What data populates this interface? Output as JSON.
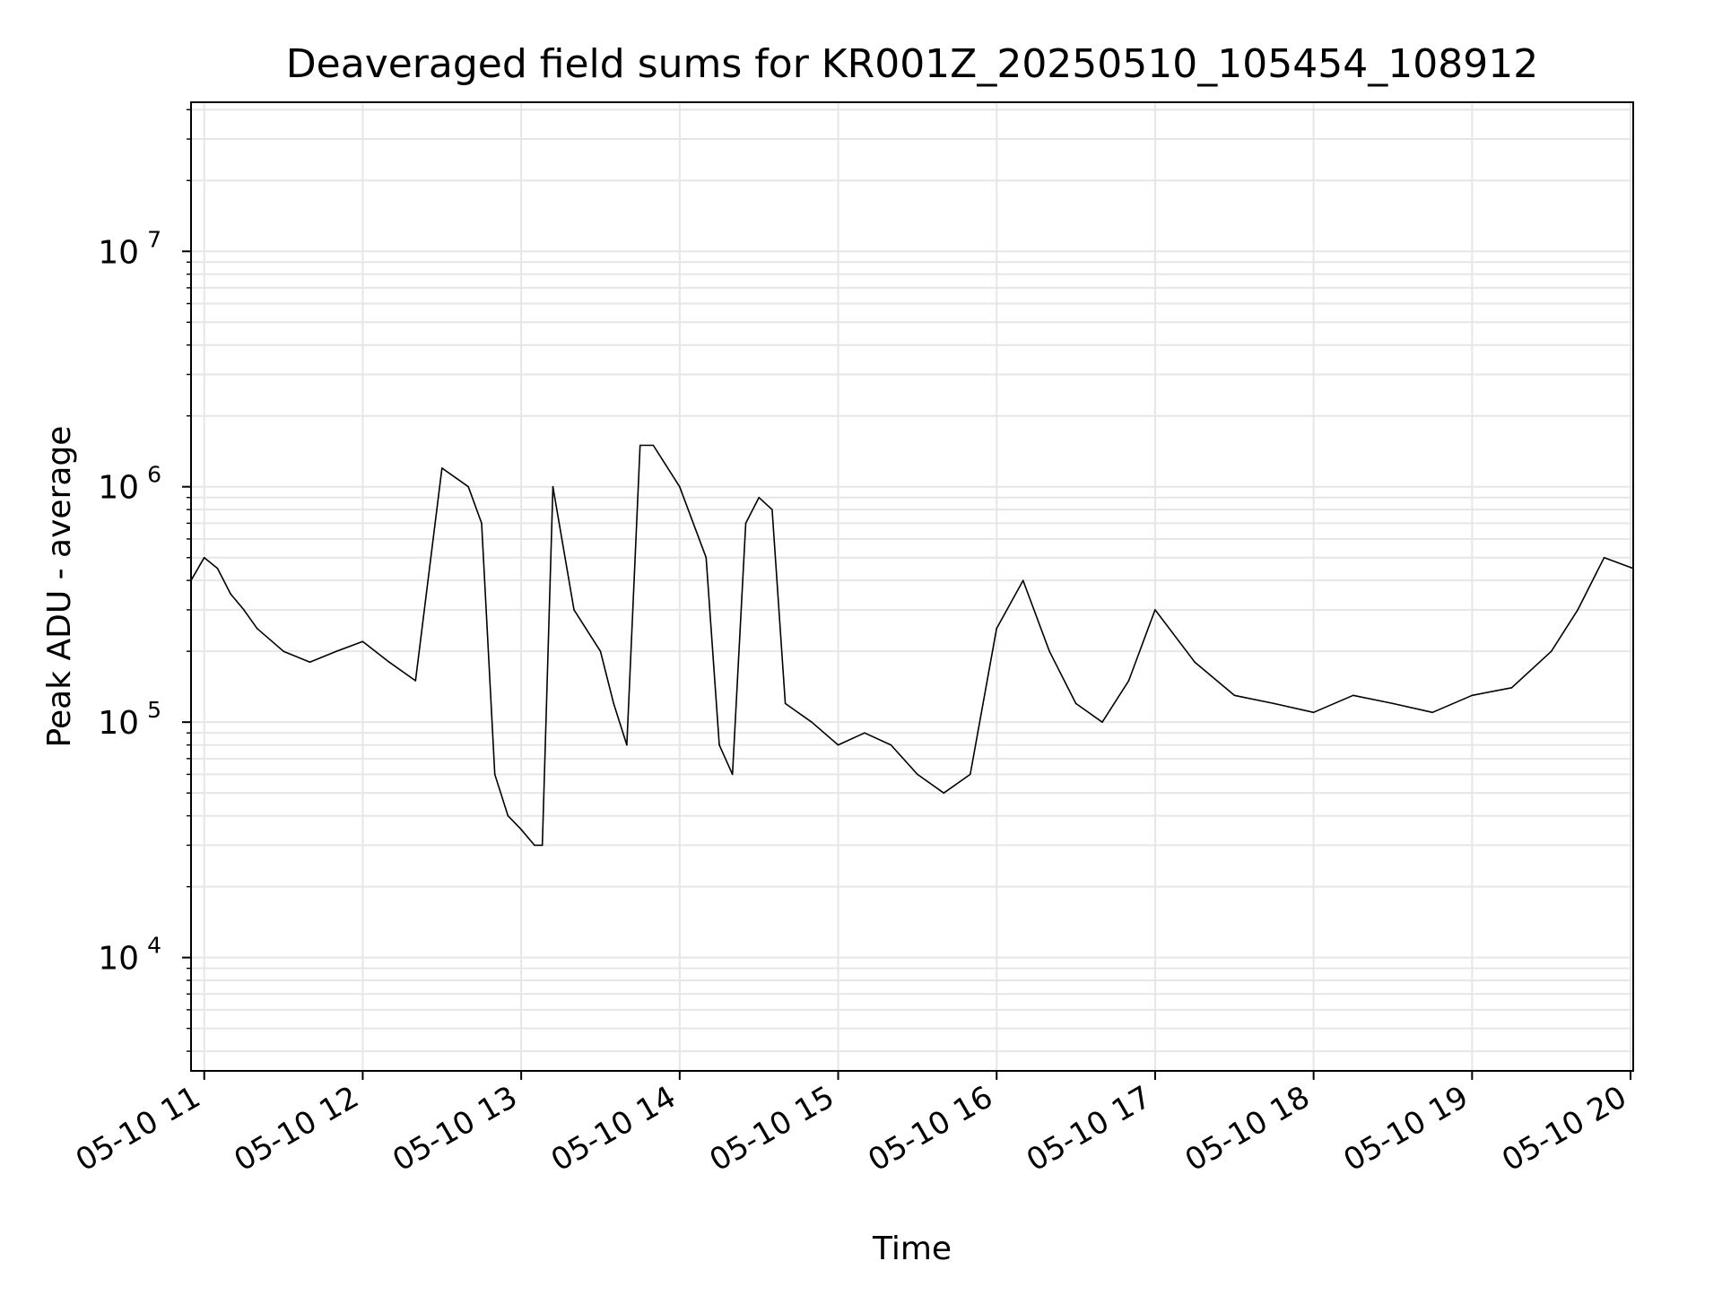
{
  "chart_data": {
    "type": "line",
    "title": "Deaveraged field sums for KR001Z_20250510_105454_108912",
    "xlabel": "Time",
    "ylabel": "Peak ADU - average",
    "y_scale": "log",
    "ylim": [
      3300,
      43000000
    ],
    "xlim": [
      "2025-05-10 10:55",
      "2025-05-10 20:01"
    ],
    "x_tick_labels": [
      "05-10 11",
      "05-10 12",
      "05-10 13",
      "05-10 14",
      "05-10 15",
      "05-10 16",
      "05-10 17",
      "05-10 18",
      "05-10 19",
      "05-10 20"
    ],
    "y_tick_labels": [
      {
        "base": "10",
        "exp": "4"
      },
      {
        "base": "10",
        "exp": "5"
      },
      {
        "base": "10",
        "exp": "6"
      },
      {
        "base": "10",
        "exp": "7"
      }
    ],
    "grid": true,
    "legend": "none",
    "line_color": "#000000",
    "grid_color": "#e6e6e6",
    "series": [
      {
        "x": [
          "2025-05-10 10:55",
          "2025-05-10 11:00",
          "2025-05-10 11:05",
          "2025-05-10 11:10",
          "2025-05-10 11:15",
          "2025-05-10 11:20",
          "2025-05-10 11:30",
          "2025-05-10 11:40",
          "2025-05-10 11:50",
          "2025-05-10 12:00",
          "2025-05-10 12:10",
          "2025-05-10 12:20",
          "2025-05-10 12:30",
          "2025-05-10 12:40",
          "2025-05-10 12:45",
          "2025-05-10 12:50",
          "2025-05-10 12:55",
          "2025-05-10 13:00",
          "2025-05-10 13:05",
          "2025-05-10 13:08",
          "2025-05-10 13:12",
          "2025-05-10 13:20",
          "2025-05-10 13:30",
          "2025-05-10 13:35",
          "2025-05-10 13:40",
          "2025-05-10 13:45",
          "2025-05-10 13:50",
          "2025-05-10 14:00",
          "2025-05-10 14:10",
          "2025-05-10 14:15",
          "2025-05-10 14:20",
          "2025-05-10 14:25",
          "2025-05-10 14:30",
          "2025-05-10 14:35",
          "2025-05-10 14:40",
          "2025-05-10 14:50",
          "2025-05-10 15:00",
          "2025-05-10 15:10",
          "2025-05-10 15:20",
          "2025-05-10 15:30",
          "2025-05-10 15:40",
          "2025-05-10 15:50",
          "2025-05-10 16:00",
          "2025-05-10 16:10",
          "2025-05-10 16:20",
          "2025-05-10 16:30",
          "2025-05-10 16:40",
          "2025-05-10 16:50",
          "2025-05-10 17:00",
          "2025-05-10 17:15",
          "2025-05-10 17:30",
          "2025-05-10 17:45",
          "2025-05-10 18:00",
          "2025-05-10 18:15",
          "2025-05-10 18:30",
          "2025-05-10 18:45",
          "2025-05-10 19:00",
          "2025-05-10 19:15",
          "2025-05-10 19:30",
          "2025-05-10 19:40",
          "2025-05-10 19:50",
          "2025-05-10 20:01"
        ],
        "y": [
          400000,
          500000,
          450000,
          350000,
          300000,
          250000,
          200000,
          180000,
          200000,
          220000,
          180000,
          150000,
          1200000,
          1000000,
          700000,
          60000,
          40000,
          35000,
          30000,
          30000,
          1000000,
          300000,
          200000,
          120000,
          80000,
          1500000,
          1500000,
          1000000,
          500000,
          80000,
          60000,
          700000,
          900000,
          800000,
          120000,
          100000,
          80000,
          90000,
          80000,
          60000,
          50000,
          60000,
          250000,
          400000,
          200000,
          120000,
          100000,
          150000,
          300000,
          180000,
          130000,
          120000,
          110000,
          130000,
          120000,
          110000,
          130000,
          140000,
          200000,
          300000,
          500000,
          450000
        ]
      }
    ]
  }
}
